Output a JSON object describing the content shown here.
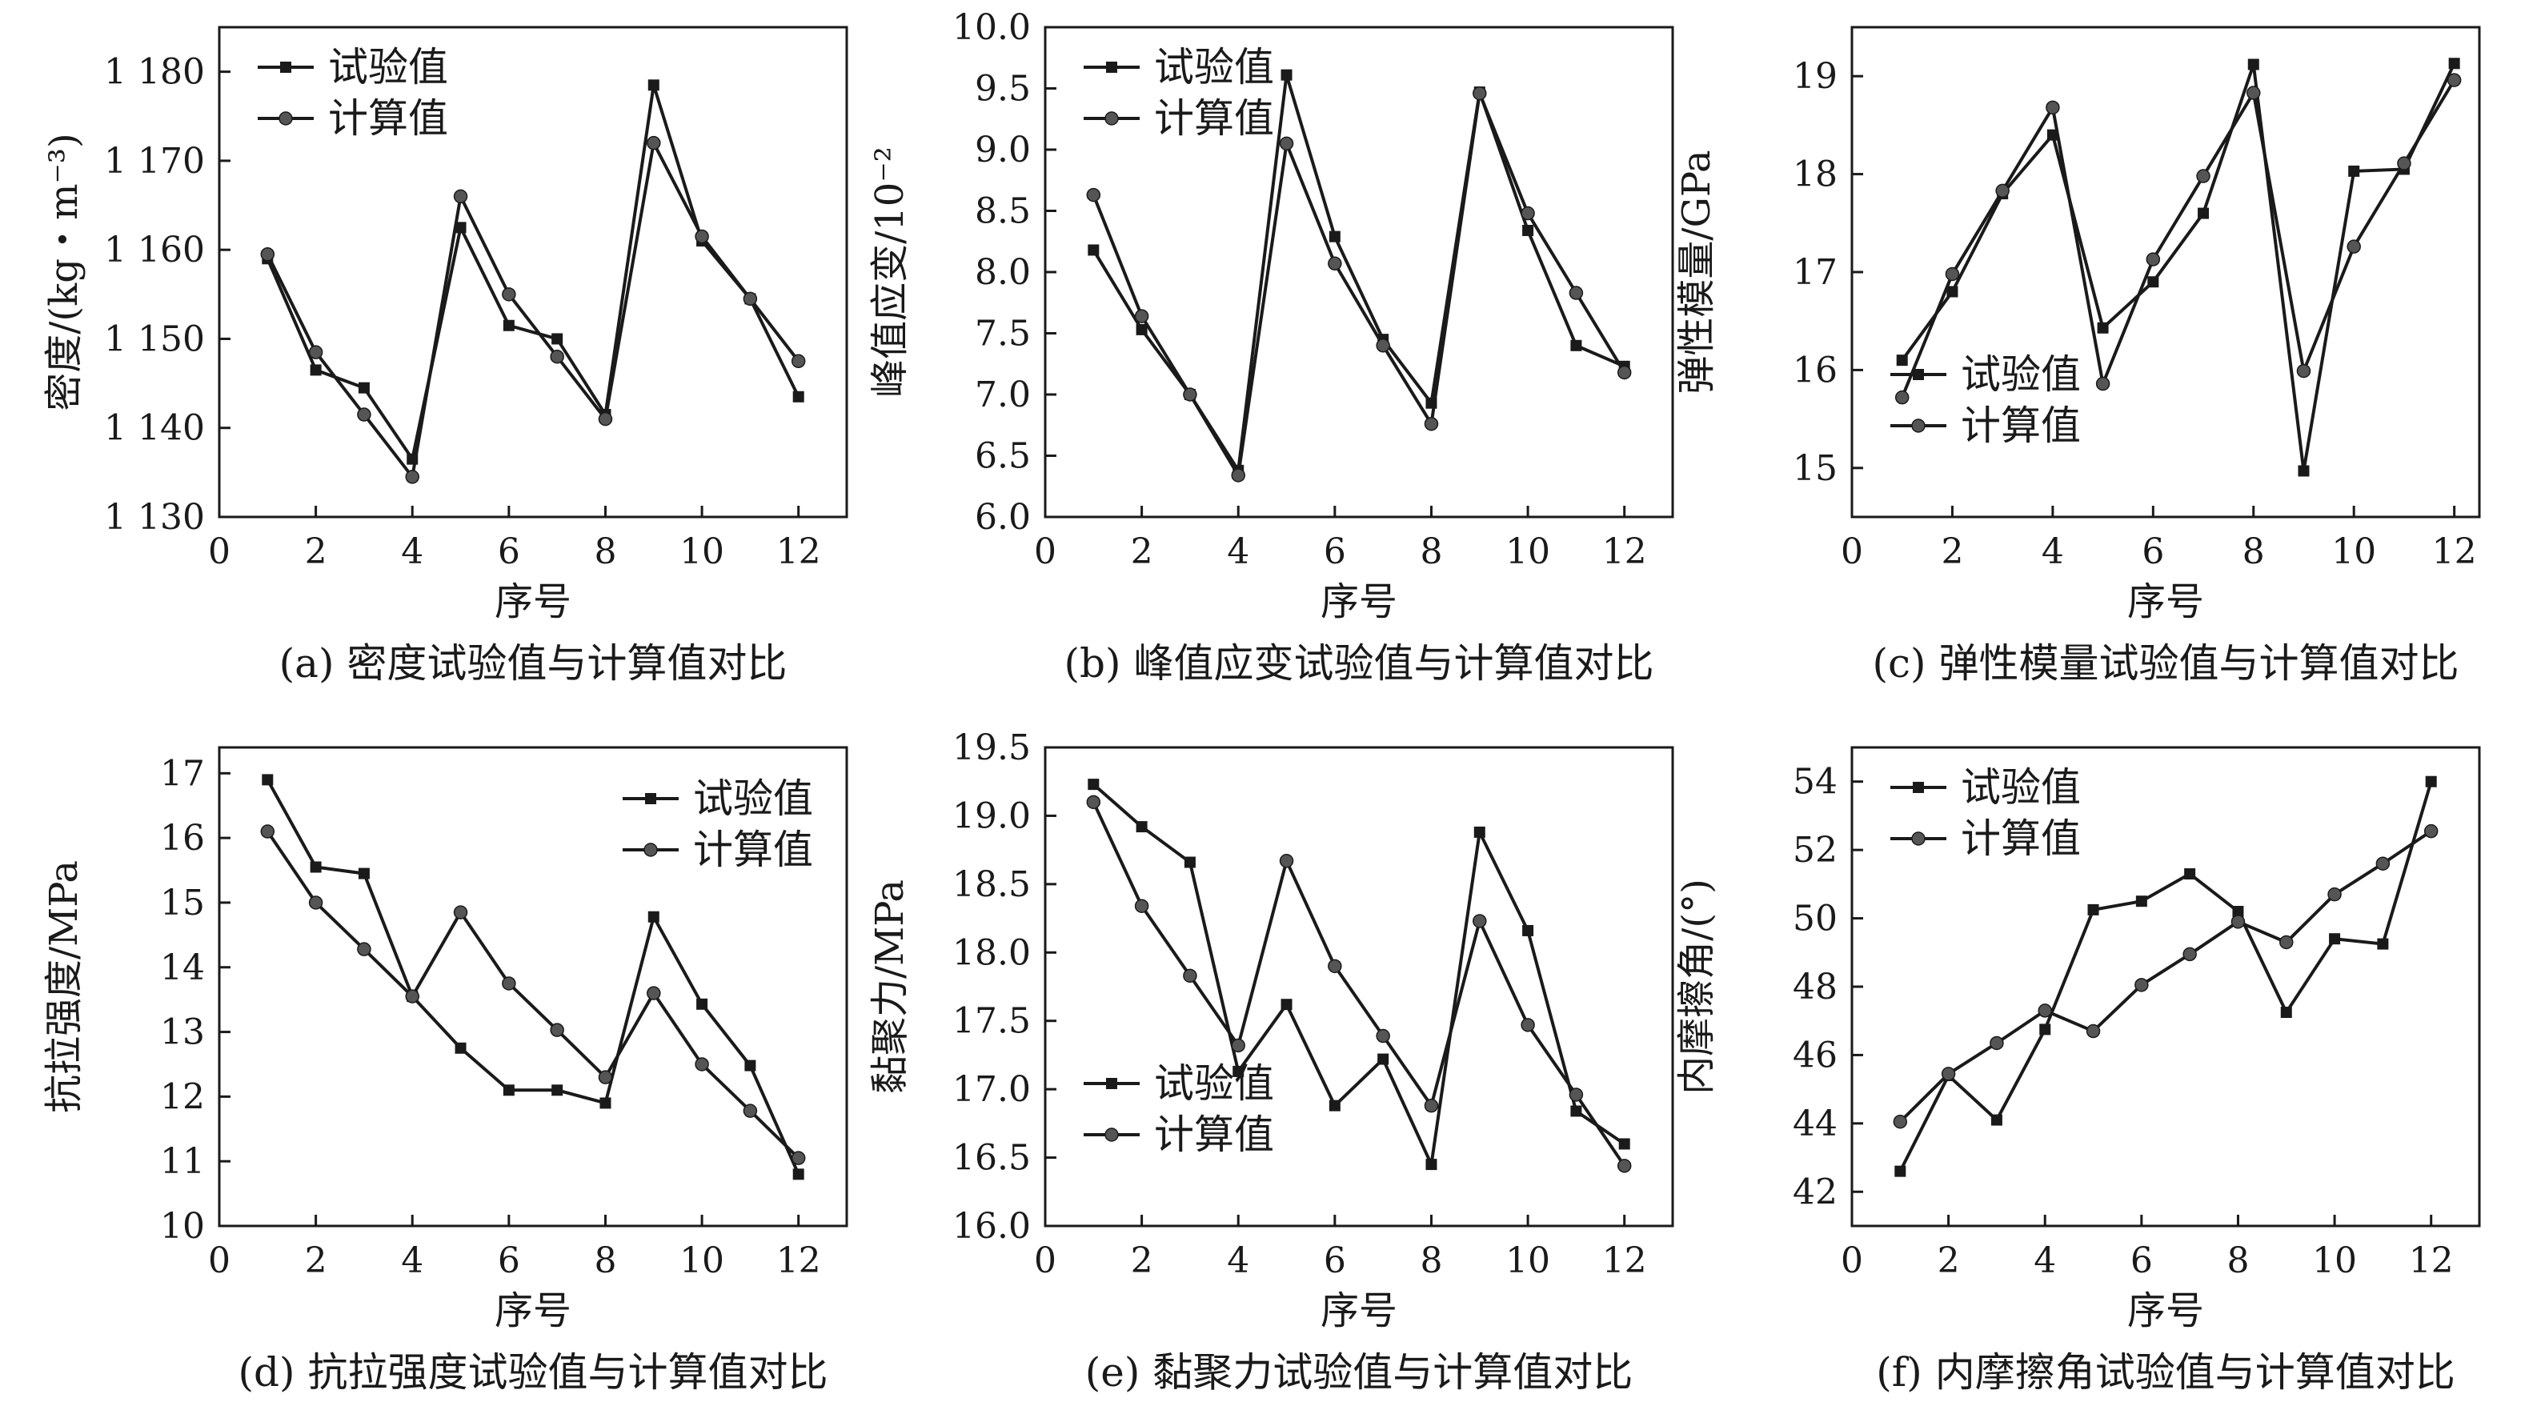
{
  "chart_data": [
    {
      "type": "line",
      "caption": "(a) 密度试验值与计算值对比",
      "xlabel": "序号",
      "ylabel": "密度/(kg・m⁻³)",
      "xlim": [
        0,
        13
      ],
      "ylim": [
        1130,
        1185
      ],
      "xticks": [
        0,
        2,
        4,
        6,
        8,
        10,
        12
      ],
      "yticks": [
        1130,
        1140,
        1150,
        1160,
        1170,
        1180
      ],
      "yticklabels": [
        "1 130",
        "1 140",
        "1 150",
        "1 160",
        "1 170",
        "1 180"
      ],
      "legend_position": "top-left",
      "x": [
        1,
        2,
        3,
        4,
        5,
        6,
        7,
        8,
        9,
        10,
        11,
        12
      ],
      "series": [
        {
          "name": "试验值",
          "marker": "square",
          "values": [
            1159,
            1146.5,
            1144.5,
            1136.5,
            1162.5,
            1151.5,
            1150,
            1141.5,
            1178.5,
            1161,
            1154.5,
            1143.5
          ]
        },
        {
          "name": "计算值",
          "marker": "circle",
          "values": [
            1159.5,
            1148.5,
            1141.5,
            1134.5,
            1166,
            1155,
            1148,
            1141,
            1172,
            1161.5,
            1154.5,
            1147.5
          ]
        }
      ]
    },
    {
      "type": "line",
      "caption": "(b) 峰值应变试验值与计算值对比",
      "xlabel": "序号",
      "ylabel": "峰值应变/10⁻²",
      "xlim": [
        0,
        13
      ],
      "ylim": [
        6.0,
        10.0
      ],
      "xticks": [
        0,
        2,
        4,
        6,
        8,
        10,
        12
      ],
      "yticks": [
        6.0,
        6.5,
        7.0,
        7.5,
        8.0,
        8.5,
        9.0,
        9.5,
        10.0
      ],
      "yticklabels": [
        "6.0",
        "6.5",
        "7.0",
        "7.5",
        "8.0",
        "8.5",
        "9.0",
        "9.5",
        "10.0"
      ],
      "legend_position": "top-left",
      "x": [
        1,
        2,
        3,
        4,
        5,
        6,
        7,
        8,
        9,
        10,
        11,
        12
      ],
      "series": [
        {
          "name": "试验值",
          "marker": "square",
          "values": [
            8.18,
            7.53,
            7.0,
            6.38,
            9.61,
            8.29,
            7.45,
            6.93,
            9.47,
            8.34,
            7.4,
            7.23
          ]
        },
        {
          "name": "计算值",
          "marker": "circle",
          "values": [
            8.63,
            7.64,
            7.0,
            6.34,
            9.05,
            8.07,
            7.4,
            6.76,
            9.46,
            8.48,
            7.83,
            7.18
          ]
        }
      ]
    },
    {
      "type": "line",
      "caption": "(c) 弹性模量试验值与计算值对比",
      "xlabel": "序号",
      "ylabel": "弹性模量/GPa",
      "xlim": [
        0,
        12.5
      ],
      "ylim": [
        14.5,
        19.5
      ],
      "xticks": [
        0,
        2,
        4,
        6,
        8,
        10,
        12
      ],
      "yticks": [
        15,
        16,
        17,
        18,
        19
      ],
      "yticklabels": [
        "15",
        "16",
        "17",
        "18",
        "19"
      ],
      "legend_position": "bottom-left",
      "x": [
        1,
        2,
        3,
        4,
        5,
        6,
        7,
        8,
        9,
        10,
        11,
        12
      ],
      "series": [
        {
          "name": "试验值",
          "marker": "square",
          "values": [
            16.1,
            16.8,
            17.8,
            18.4,
            16.43,
            16.9,
            17.6,
            19.12,
            14.97,
            18.03,
            18.05,
            19.13
          ]
        },
        {
          "name": "计算值",
          "marker": "circle",
          "values": [
            15.72,
            16.98,
            17.83,
            18.68,
            15.86,
            17.13,
            17.98,
            18.83,
            15.99,
            17.26,
            18.11,
            18.96
          ]
        }
      ]
    },
    {
      "type": "line",
      "caption": "(d) 抗拉强度试验值与计算值对比",
      "xlabel": "序号",
      "ylabel": "抗拉强度/MPa",
      "xlim": [
        0,
        13
      ],
      "ylim": [
        10,
        17.4
      ],
      "xticks": [
        0,
        2,
        4,
        6,
        8,
        10,
        12
      ],
      "yticks": [
        10,
        11,
        12,
        13,
        14,
        15,
        16,
        17
      ],
      "yticklabels": [
        "10",
        "11",
        "12",
        "13",
        "14",
        "15",
        "16",
        "17"
      ],
      "legend_position": "top-right",
      "x": [
        1,
        2,
        3,
        4,
        5,
        6,
        7,
        8,
        9,
        10,
        11,
        12
      ],
      "series": [
        {
          "name": "试验值",
          "marker": "square",
          "values": [
            16.9,
            15.55,
            15.45,
            13.55,
            12.75,
            12.1,
            12.1,
            11.9,
            14.78,
            13.43,
            12.48,
            10.8
          ]
        },
        {
          "name": "计算值",
          "marker": "circle",
          "values": [
            16.1,
            15.0,
            14.28,
            13.55,
            14.85,
            13.75,
            13.03,
            12.3,
            13.6,
            12.5,
            11.78,
            11.05
          ]
        }
      ]
    },
    {
      "type": "line",
      "caption": "(e) 黏聚力试验值与计算值对比",
      "xlabel": "序号",
      "ylabel": "黏聚力/MPa",
      "xlim": [
        0,
        13
      ],
      "ylim": [
        16.0,
        19.5
      ],
      "xticks": [
        0,
        2,
        4,
        6,
        8,
        10,
        12
      ],
      "yticks": [
        16.0,
        16.5,
        17.0,
        17.5,
        18.0,
        18.5,
        19.0,
        19.5
      ],
      "yticklabels": [
        "16.0",
        "16.5",
        "17.0",
        "17.5",
        "18.0",
        "18.5",
        "19.0",
        "19.5"
      ],
      "legend_position": "bottom-left",
      "x": [
        1,
        2,
        3,
        4,
        5,
        6,
        7,
        8,
        9,
        10,
        11,
        12
      ],
      "series": [
        {
          "name": "试验值",
          "marker": "square",
          "values": [
            19.23,
            18.92,
            18.66,
            17.13,
            17.62,
            16.88,
            17.22,
            16.45,
            18.88,
            18.16,
            16.84,
            16.6
          ]
        },
        {
          "name": "计算值",
          "marker": "circle",
          "values": [
            19.1,
            18.34,
            17.83,
            17.32,
            18.67,
            17.9,
            17.39,
            16.88,
            18.23,
            17.47,
            16.96,
            16.44
          ]
        }
      ]
    },
    {
      "type": "line",
      "caption": "(f) 内摩擦角试验值与计算值对比",
      "xlabel": "序号",
      "ylabel": "内摩擦角/(°)",
      "xlim": [
        0,
        13
      ],
      "ylim": [
        41,
        55
      ],
      "xticks": [
        0,
        2,
        4,
        6,
        8,
        10,
        12
      ],
      "yticks": [
        42,
        44,
        46,
        48,
        50,
        52,
        54
      ],
      "yticklabels": [
        "42",
        "44",
        "46",
        "48",
        "50",
        "52",
        "54"
      ],
      "legend_position": "top-left",
      "x": [
        1,
        2,
        3,
        4,
        5,
        6,
        7,
        8,
        9,
        10,
        11,
        12
      ],
      "series": [
        {
          "name": "试验值",
          "marker": "square",
          "values": [
            42.6,
            45.4,
            44.1,
            46.75,
            50.25,
            50.5,
            51.3,
            50.2,
            47.25,
            49.4,
            49.25,
            54.0
          ]
        },
        {
          "name": "计算值",
          "marker": "circle",
          "values": [
            44.05,
            45.45,
            46.35,
            47.3,
            46.7,
            48.05,
            48.95,
            49.9,
            49.3,
            50.7,
            51.6,
            52.55
          ]
        }
      ]
    }
  ]
}
